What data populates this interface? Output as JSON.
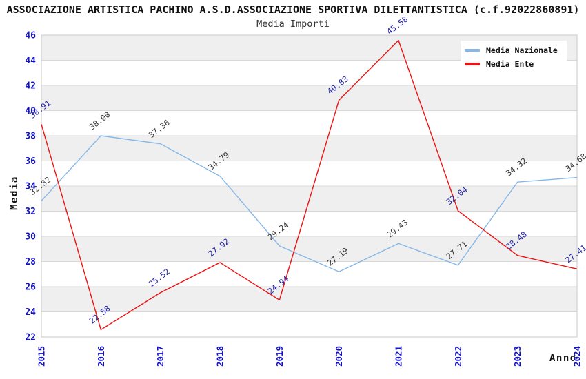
{
  "header": {
    "title": "ASSOCIAZIONE ARTISTICA PACHINO A.S.D.ASSOCIAZIONE SPORTIVA DILETTANTISTICA (c.f.92022860891)"
  },
  "chart_data": {
    "type": "line",
    "title": "Media Importi",
    "xlabel": "Anno",
    "ylabel": "Media",
    "x": [
      2015,
      2016,
      2017,
      2018,
      2019,
      2020,
      2021,
      2022,
      2023,
      2024
    ],
    "ylim": [
      22,
      46
    ],
    "ytick_step": 2,
    "grid": "horizontal, alternating shaded bands",
    "legend_position": "top-right",
    "series": [
      {
        "name": "Media Nazionale",
        "color": "#85B7E8",
        "label_color": "#383838",
        "values": [
          32.82,
          38.0,
          37.36,
          34.79,
          29.24,
          27.19,
          29.43,
          27.71,
          34.32,
          34.68
        ]
      },
      {
        "name": "Media Ente",
        "color": "#EE1111",
        "label_color": "#2222AA",
        "values": [
          38.91,
          22.58,
          25.52,
          27.92,
          24.94,
          40.83,
          45.58,
          32.04,
          28.48,
          27.41
        ]
      }
    ],
    "colors": {
      "tick_label": "#1111CC",
      "band": "#EFEFEF",
      "gridline": "#D8D8D8",
      "border": "#C8C8C8"
    }
  }
}
